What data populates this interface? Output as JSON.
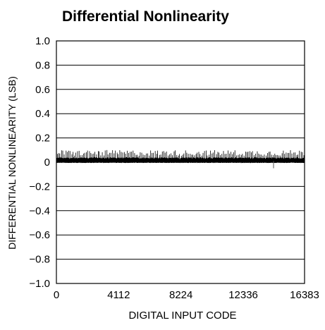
{
  "chart_data": {
    "type": "line",
    "title": "Differential Nonlinearity",
    "xlabel": "DIGITAL INPUT CODE",
    "ylabel": "DIFFERENTIAL NONLINEARITY (LSB)",
    "xlim": [
      0,
      16383
    ],
    "ylim": [
      -1.0,
      1.0
    ],
    "x_ticks": [
      0,
      4112,
      8224,
      12336,
      16383
    ],
    "x_tick_labels": [
      "0",
      "4112",
      "8224",
      "12336",
      "16383"
    ],
    "y_ticks": [
      1.0,
      0.8,
      0.6,
      0.4,
      0.2,
      0,
      -0.2,
      -0.4,
      -0.6,
      -0.8,
      -1.0
    ],
    "y_tick_labels": [
      "1.0",
      "0.8",
      "0.6",
      "0.4",
      "0.2",
      "0",
      "−0.2",
      "−0.4",
      "−0.6",
      "−0.8",
      "−1.0"
    ],
    "grid": "horizontal",
    "series": [
      {
        "noise_band_min": 0.0,
        "noise_band_max": 0.04,
        "spike_max": 0.1,
        "outliers": [
          {
            "x": 14336,
            "y": -0.05
          }
        ]
      }
    ],
    "colors": {
      "trace": "#000000",
      "grid": "#000000",
      "frame": "#000000"
    }
  }
}
